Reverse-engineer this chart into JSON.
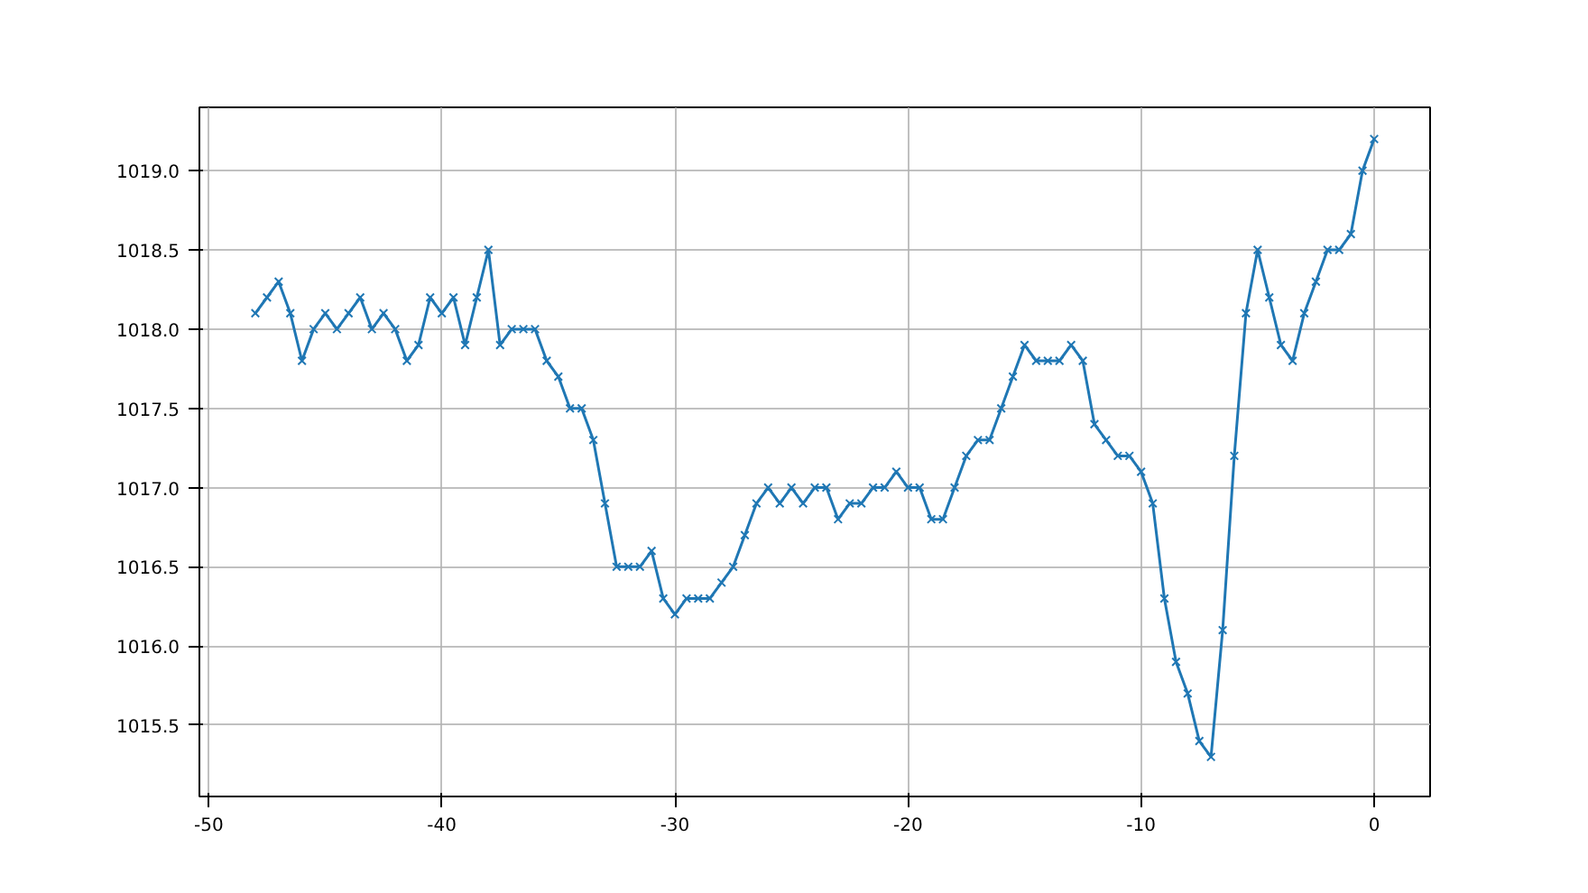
{
  "chart_data": {
    "type": "line",
    "x": [
      -48,
      -47.5,
      -47,
      -46.5,
      -46,
      -45.5,
      -45,
      -44.5,
      -44,
      -43.5,
      -43,
      -42.5,
      -42,
      -41.5,
      -41,
      -40.5,
      -40,
      -39.5,
      -39,
      -38.5,
      -38,
      -37.5,
      -37,
      -36.5,
      -36,
      -35.5,
      -35,
      -34.5,
      -34,
      -33.5,
      -33,
      -32.5,
      -32,
      -31.5,
      -31,
      -30.5,
      -30,
      -29.5,
      -29,
      -28.5,
      -28,
      -27.5,
      -27,
      -26.5,
      -26,
      -25.5,
      -25,
      -24.5,
      -24,
      -23.5,
      -23,
      -22.5,
      -22,
      -21.5,
      -21,
      -20.5,
      -20,
      -19.5,
      -19,
      -18.5,
      -18,
      -17.5,
      -17,
      -16.5,
      -16,
      -15.5,
      -15,
      -14.5,
      -14,
      -13.5,
      -13,
      -12.5,
      -12,
      -11.5,
      -11,
      -10.5,
      -10,
      -9.5,
      -9,
      -8.5,
      -8,
      -7.5,
      -7,
      -6.5,
      -6,
      -5.5,
      -5,
      -4.5,
      -4,
      -3.5,
      -3,
      -2.5,
      -2,
      -1.5,
      -1,
      -0.5,
      0
    ],
    "series": [
      {
        "color": "#1f77b4",
        "values": [
          1018.1,
          1018.2,
          1018.3,
          1018.1,
          1017.8,
          1018.0,
          1018.1,
          1018.0,
          1018.1,
          1018.2,
          1018.0,
          1018.1,
          1018.0,
          1017.8,
          1017.9,
          1018.2,
          1018.1,
          1018.2,
          1017.9,
          1018.2,
          1018.5,
          1017.9,
          1018.0,
          1018.0,
          1018.0,
          1017.8,
          1017.7,
          1017.5,
          1017.5,
          1017.3,
          1016.9,
          1016.5,
          1016.5,
          1016.5,
          1016.6,
          1016.3,
          1016.2,
          1016.3,
          1016.3,
          1016.3,
          1016.4,
          1016.5,
          1016.7,
          1016.9,
          1017.0,
          1016.9,
          1017.0,
          1016.9,
          1017.0,
          1017.0,
          1016.8,
          1016.9,
          1016.9,
          1017.0,
          1017.0,
          1017.1,
          1017.0,
          1017.0,
          1016.8,
          1016.8,
          1017.0,
          1017.2,
          1017.3,
          1017.3,
          1017.5,
          1017.7,
          1017.9,
          1017.8,
          1017.8,
          1017.8,
          1017.9,
          1017.8,
          1017.4,
          1017.3,
          1017.2,
          1017.2,
          1017.1,
          1016.9,
          1016.3,
          1015.9,
          1015.7,
          1015.4,
          1015.3,
          1016.1,
          1017.2,
          1018.1,
          1018.5,
          1018.2,
          1017.9,
          1017.8,
          1018.1,
          1018.3,
          1018.5,
          1018.5,
          1018.6,
          1019.0,
          1019.2
        ]
      }
    ],
    "xlim": [
      -50.4,
      2.4
    ],
    "ylim": [
      1015.05,
      1019.4
    ],
    "xticks": [
      -50,
      -40,
      -30,
      -20,
      -10,
      0
    ],
    "yticks": [
      {
        "value": 1015.5,
        "label": "1015.5"
      },
      {
        "value": 1016.0,
        "label": "1016.0"
      },
      {
        "value": 1016.5,
        "label": "1016.5"
      },
      {
        "value": 1017.0,
        "label": "1017.0"
      },
      {
        "value": 1017.5,
        "label": "1017.5"
      },
      {
        "value": 1018.0,
        "label": "1018.0"
      },
      {
        "value": 1018.5,
        "label": "1018.5"
      },
      {
        "value": 1019.0,
        "label": "1019.0"
      }
    ],
    "grid": true,
    "marker": "cross",
    "line_style": "solid"
  }
}
